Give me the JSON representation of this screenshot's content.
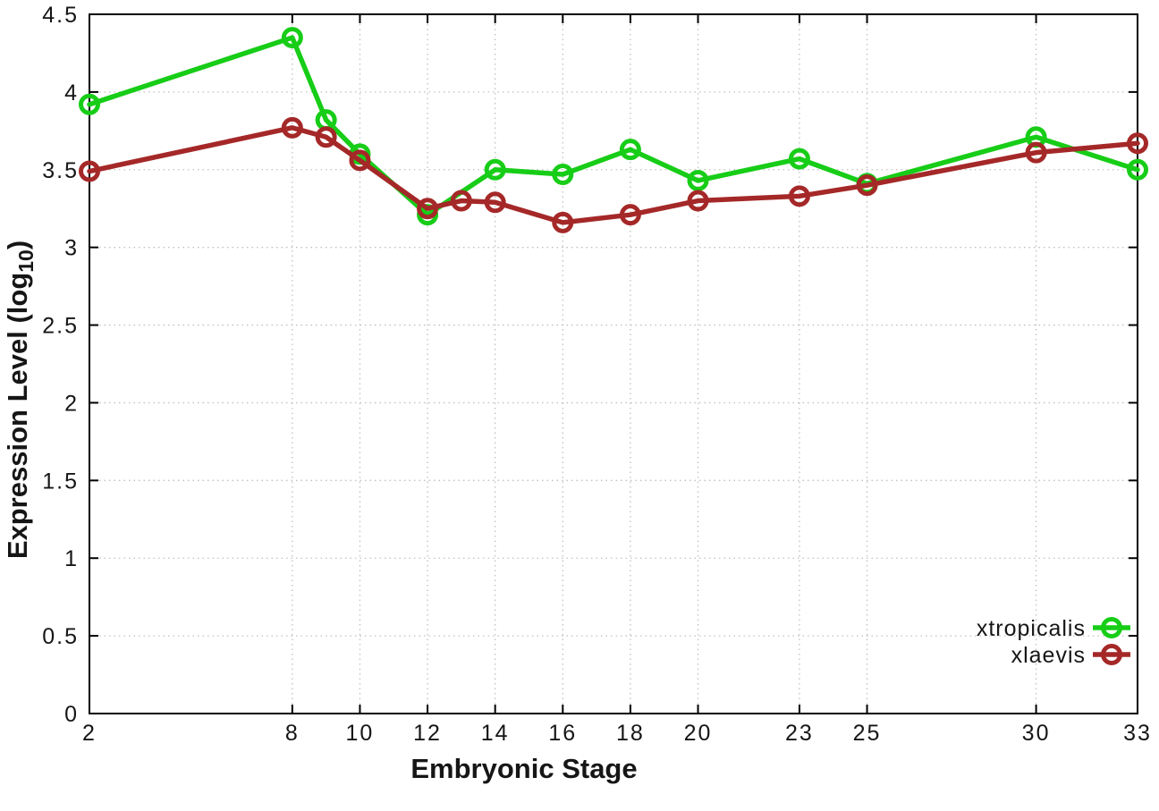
{
  "chart_data": {
    "type": "line",
    "title": "",
    "xlabel": "Embryonic Stage",
    "ylabel": "Expression Level (log10)",
    "ylabel_rich": {
      "main": "Expression Level (log",
      "subscript": "10",
      "suffix": ")"
    },
    "xlim": [
      2,
      33
    ],
    "ylim": [
      0,
      4.5
    ],
    "x_ticks": [
      2,
      8,
      10,
      12,
      14,
      16,
      18,
      20,
      23,
      25,
      30,
      33
    ],
    "y_ticks": [
      0,
      0.5,
      1,
      1.5,
      2,
      2.5,
      3,
      3.5,
      4,
      4.5
    ],
    "grid": true,
    "legend_position": "bottom-right",
    "axis_color": "#000000",
    "grid_color": "#c0c0c0",
    "series": [
      {
        "name": "xtropicalis",
        "color": "#17cd17",
        "points": [
          [
            2,
            3.92
          ],
          [
            8,
            4.35
          ],
          [
            9,
            3.82
          ],
          [
            10,
            3.6
          ],
          [
            12,
            3.21
          ],
          [
            14,
            3.5
          ],
          [
            16,
            3.47
          ],
          [
            18,
            3.63
          ],
          [
            20,
            3.43
          ],
          [
            23,
            3.57
          ],
          [
            25,
            3.41
          ],
          [
            30,
            3.71
          ],
          [
            33,
            3.5
          ]
        ]
      },
      {
        "name": "xlaevis",
        "color": "#a52828",
        "points": [
          [
            2,
            3.49
          ],
          [
            8,
            3.77
          ],
          [
            9,
            3.71
          ],
          [
            10,
            3.56
          ],
          [
            12,
            3.25
          ],
          [
            13,
            3.3
          ],
          [
            14,
            3.29
          ],
          [
            16,
            3.16
          ],
          [
            18,
            3.21
          ],
          [
            20,
            3.3
          ],
          [
            23,
            3.33
          ],
          [
            25,
            3.4
          ],
          [
            30,
            3.61
          ],
          [
            33,
            3.67
          ]
        ]
      }
    ]
  }
}
